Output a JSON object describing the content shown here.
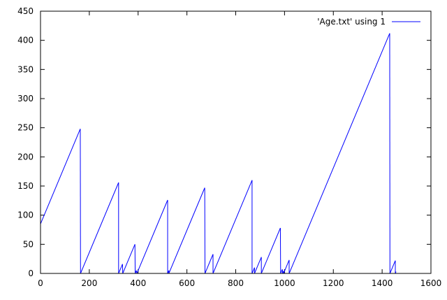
{
  "chart_data": {
    "type": "line",
    "title": "",
    "xlabel": "",
    "ylabel": "",
    "xlim": [
      0,
      1600
    ],
    "ylim": [
      0,
      450
    ],
    "xticks": [
      0,
      200,
      400,
      600,
      800,
      1000,
      1200,
      1400,
      1600
    ],
    "yticks": [
      0,
      50,
      100,
      150,
      200,
      250,
      300,
      350,
      400,
      450
    ],
    "grid": false,
    "legend_position": "top-right",
    "series": [
      {
        "name": "'Age.txt' using 1",
        "color": "#0000ff",
        "points": [
          [
            0,
            85
          ],
          [
            163,
            248
          ],
          [
            164,
            0
          ],
          [
            320,
            156
          ],
          [
            320,
            0
          ],
          [
            336,
            16
          ],
          [
            337,
            0
          ],
          [
            387,
            50
          ],
          [
            388,
            0
          ],
          [
            393,
            5
          ],
          [
            395,
            0
          ],
          [
            521,
            126
          ],
          [
            521,
            0
          ],
          [
            526,
            5
          ],
          [
            526,
            0
          ],
          [
            673,
            147
          ],
          [
            674,
            0
          ],
          [
            707,
            33
          ],
          [
            707,
            0
          ],
          [
            867,
            160
          ],
          [
            867,
            0
          ],
          [
            877,
            10
          ],
          [
            877,
            0
          ],
          [
            905,
            28
          ],
          [
            905,
            0
          ],
          [
            983,
            78
          ],
          [
            984,
            0
          ],
          [
            991,
            7
          ],
          [
            992,
            0
          ],
          [
            996,
            4
          ],
          [
            996,
            0
          ],
          [
            1019,
            23
          ],
          [
            1019,
            0
          ],
          [
            1431,
            412
          ],
          [
            1432,
            0
          ],
          [
            1454,
            22
          ],
          [
            1454,
            0
          ],
          [
            1457,
            3
          ]
        ]
      }
    ]
  }
}
